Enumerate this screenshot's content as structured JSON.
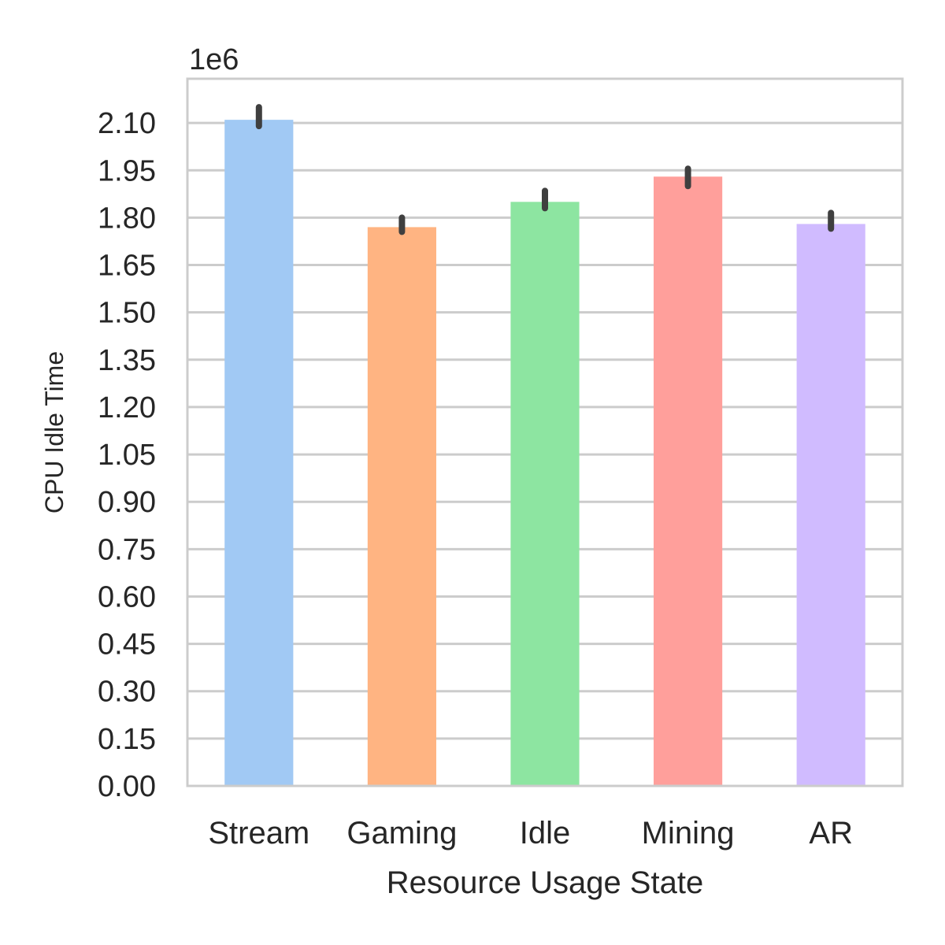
{
  "chart_data": {
    "type": "bar",
    "title": "",
    "xlabel": "Resource Usage State",
    "ylabel": "CPU Idle Time",
    "y_offset_label": "1e6",
    "ylim": [
      0,
      2.24
    ],
    "y_ticks": [
      0.0,
      0.15,
      0.3,
      0.45,
      0.6,
      0.75,
      0.9,
      1.05,
      1.2,
      1.35,
      1.5,
      1.65,
      1.8,
      1.95,
      2.1
    ],
    "y_tick_labels": [
      "0.00",
      "0.15",
      "0.30",
      "0.45",
      "0.60",
      "0.75",
      "0.90",
      "1.05",
      "1.20",
      "1.35",
      "1.50",
      "1.65",
      "1.80",
      "1.95",
      "2.10"
    ],
    "grid": "horizontal",
    "categories": [
      "Stream",
      "Gaming",
      "Idle",
      "Mining",
      "AR"
    ],
    "values": [
      2.11,
      1.77,
      1.85,
      1.93,
      1.78
    ],
    "error_low": [
      2.09,
      1.755,
      1.83,
      1.9,
      1.765
    ],
    "error_high": [
      2.15,
      1.8,
      1.885,
      1.955,
      1.815
    ],
    "colors": [
      "#a1c9f4",
      "#ffb482",
      "#8de5a1",
      "#ff9f9b",
      "#d0bbff"
    ],
    "errorbar_color": "#3f3f3f",
    "grid_color": "#cccccc",
    "spine_color": "#cccccc"
  }
}
